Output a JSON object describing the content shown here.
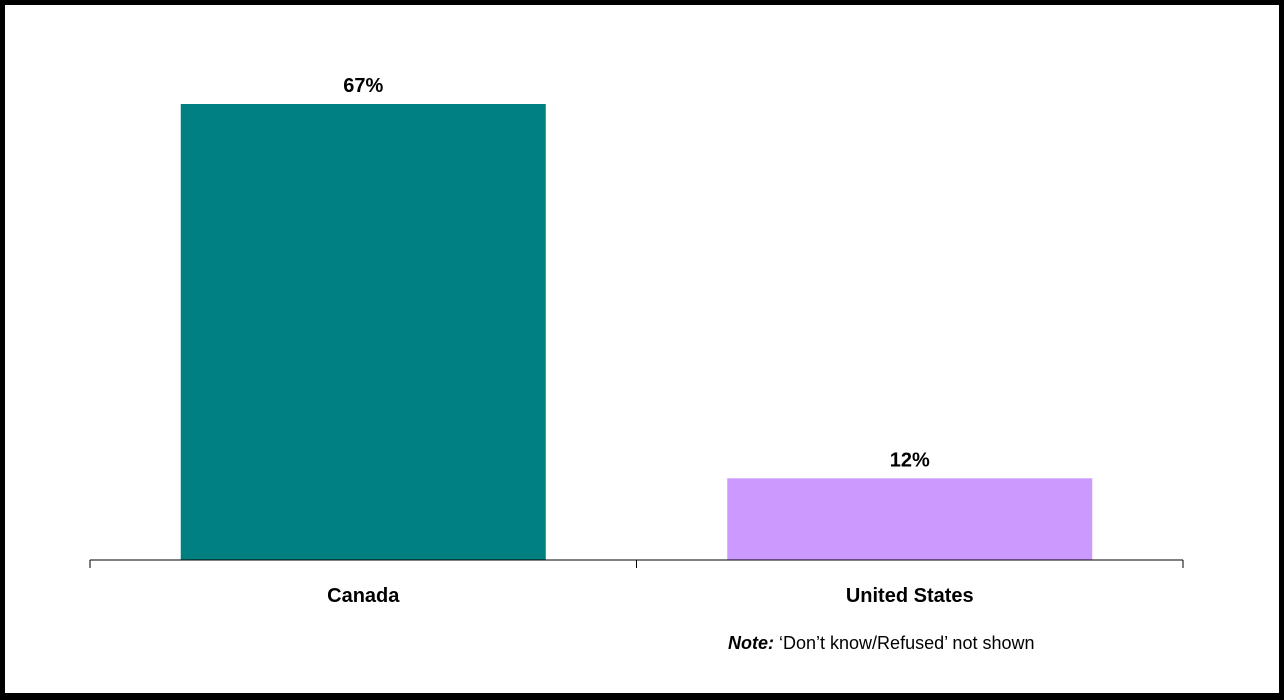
{
  "chart_data": {
    "type": "bar",
    "categories": [
      "Canada",
      "United States"
    ],
    "values": [
      67,
      12
    ],
    "value_labels": [
      "67%",
      "12%"
    ],
    "colors": [
      "#008080",
      "#CC99FF"
    ],
    "ylim": [
      0,
      67
    ],
    "grid": false,
    "title": "",
    "xlabel": "",
    "ylabel": ""
  },
  "note": {
    "label": "Note:",
    "text": "‘Don’t know/Refused’ not shown"
  }
}
